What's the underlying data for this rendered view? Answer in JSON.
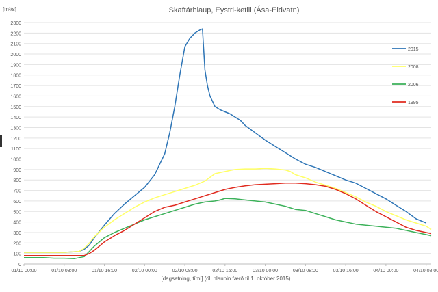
{
  "chart_data": {
    "type": "line",
    "title": "Skaftárhlaup, Eystri-ketill (Ása-Eldvatn)",
    "ylabel": "[m³/s]",
    "xlabel": "[dagsetning, tími] (öll hlaupin færð til 1. október 2015)",
    "ylim": [
      0,
      2300
    ],
    "xlim": [
      0,
      81
    ],
    "y_ticks": [
      0,
      100,
      200,
      300,
      400,
      500,
      600,
      700,
      800,
      900,
      1000,
      1100,
      1200,
      1300,
      1400,
      1500,
      1600,
      1700,
      1800,
      1900,
      2000,
      2100,
      2200,
      2300
    ],
    "x_ticks": [
      {
        "x": 0,
        "label": "01/10 00:00"
      },
      {
        "x": 8,
        "label": "01/10 08:00"
      },
      {
        "x": 16,
        "label": "01/10 16:00"
      },
      {
        "x": 24,
        "label": "02/10 00:00"
      },
      {
        "x": 32,
        "label": "02/10 08:00"
      },
      {
        "x": 40,
        "label": "02/10 16:00"
      },
      {
        "x": 48,
        "label": "03/10 00:00"
      },
      {
        "x": 56,
        "label": "03/10 08:00"
      },
      {
        "x": 64,
        "label": "03/10 16:00"
      },
      {
        "x": 72,
        "label": "04/10 00:00"
      },
      {
        "x": 80,
        "label": "04/10 08:00"
      }
    ],
    "grid": "horizontal",
    "legend_position": "right",
    "series": [
      {
        "name": "2015",
        "color": "#2e75b6",
        "x": [
          0,
          4,
          8,
          11,
          12,
          13,
          14,
          16,
          18,
          20,
          22,
          24,
          26,
          28,
          29,
          30,
          31,
          32,
          33,
          34,
          35,
          35.5,
          36,
          36.5,
          37,
          37.5,
          38,
          39,
          40,
          41,
          42,
          43,
          44,
          46,
          48,
          50,
          52,
          54,
          56,
          58,
          60,
          62,
          64,
          66,
          68,
          70,
          72,
          74,
          76,
          78,
          80
        ],
        "y": [
          110,
          110,
          110,
          120,
          140,
          180,
          250,
          370,
          480,
          570,
          650,
          730,
          850,
          1050,
          1250,
          1500,
          1800,
          2070,
          2150,
          2200,
          2230,
          2240,
          1850,
          1700,
          1600,
          1550,
          1500,
          1470,
          1450,
          1430,
          1400,
          1370,
          1320,
          1250,
          1180,
          1120,
          1060,
          1000,
          950,
          920,
          880,
          840,
          800,
          770,
          720,
          670,
          620,
          560,
          500,
          430,
          390
        ]
      },
      {
        "name": "2008",
        "color": "#ffff66",
        "x": [
          0,
          4,
          8,
          11,
          12,
          13,
          14,
          16,
          18,
          20,
          22,
          24,
          26,
          28,
          30,
          32,
          34,
          36,
          38,
          40,
          42,
          44,
          46,
          48,
          50,
          52,
          53,
          54,
          56,
          58,
          60,
          62,
          64,
          66,
          68,
          70,
          72,
          74,
          76,
          78,
          80,
          81
        ],
        "y": [
          110,
          110,
          110,
          120,
          150,
          200,
          260,
          350,
          420,
          480,
          540,
          590,
          630,
          660,
          690,
          720,
          750,
          790,
          860,
          880,
          900,
          905,
          905,
          910,
          905,
          895,
          880,
          850,
          820,
          780,
          750,
          720,
          680,
          640,
          590,
          550,
          500,
          460,
          420,
          390,
          360,
          330
        ]
      },
      {
        "name": "2006",
        "color": "#3cb15a",
        "x": [
          0,
          2,
          4,
          6,
          8,
          10,
          12,
          13,
          14,
          16,
          18,
          20,
          22,
          24,
          26,
          28,
          30,
          32,
          34,
          36,
          38,
          39,
          40,
          42,
          44,
          46,
          48,
          50,
          52,
          54,
          56,
          58,
          60,
          62,
          64,
          66,
          68,
          70,
          72,
          74,
          76,
          78,
          80,
          81
        ],
        "y": [
          60,
          60,
          60,
          55,
          55,
          50,
          70,
          120,
          170,
          250,
          300,
          340,
          380,
          420,
          450,
          480,
          510,
          540,
          570,
          590,
          600,
          610,
          625,
          620,
          610,
          600,
          590,
          570,
          550,
          520,
          510,
          480,
          450,
          420,
          400,
          380,
          370,
          360,
          350,
          340,
          320,
          300,
          280,
          270
        ]
      },
      {
        "name": "1995",
        "color": "#e02b1f",
        "x": [
          0,
          4,
          8,
          12,
          13,
          14,
          15,
          16,
          17,
          18,
          20,
          22,
          24,
          26,
          28,
          30,
          32,
          34,
          36,
          38,
          40,
          42,
          44,
          46,
          48,
          50,
          52,
          54,
          56,
          58,
          60,
          62,
          64,
          66,
          68,
          70,
          72,
          74,
          76,
          78,
          80,
          81
        ],
        "y": [
          80,
          80,
          80,
          80,
          100,
          130,
          170,
          210,
          240,
          270,
          320,
          380,
          440,
          500,
          540,
          560,
          590,
          620,
          650,
          680,
          710,
          730,
          745,
          755,
          760,
          765,
          770,
          770,
          765,
          755,
          740,
          710,
          670,
          620,
          560,
          500,
          450,
          400,
          350,
          320,
          300,
          290
        ]
      }
    ]
  }
}
